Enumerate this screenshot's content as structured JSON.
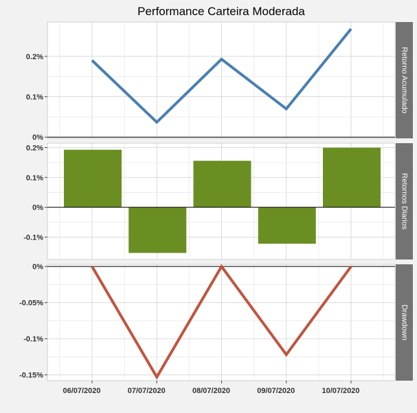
{
  "chart_data": {
    "type": "line",
    "title": "Performance Carteira Moderada",
    "xlabel": "",
    "ylabel": "",
    "x": [
      "06/07/2020",
      "07/07/2020",
      "08/07/2020",
      "09/07/2020",
      "10/07/2020"
    ],
    "x_tick_labels": [
      "06/07/2020",
      "07/07/2020",
      "08/07/2020",
      "09/07/2020",
      "10/07/2020"
    ],
    "grid": true,
    "panels": [
      {
        "name": "Retorno Acumulado",
        "type": "line",
        "color": "#4a7fb0",
        "values": [
          0.19,
          0.037,
          0.193,
          0.07,
          0.268
        ],
        "ylim": [
          -0.003,
          0.285
        ],
        "y_ticks": [
          {
            "value": 0.2,
            "label": "0.2%"
          },
          {
            "value": 0.1,
            "label": "0.1%"
          },
          {
            "value": 0.0,
            "label": "0%"
          }
        ],
        "zero_line": true
      },
      {
        "name": "Retornos Diarios",
        "type": "bar",
        "color": "#6b8e23",
        "values": [
          0.193,
          -0.153,
          0.156,
          -0.122,
          0.2
        ],
        "ylim": [
          -0.175,
          0.215
        ],
        "y_ticks": [
          {
            "value": 0.2,
            "label": "0.2%"
          },
          {
            "value": 0.1,
            "label": "0.1%"
          },
          {
            "value": 0.0,
            "label": "0%"
          },
          {
            "value": -0.1,
            "label": "-0.1%"
          }
        ],
        "zero_line": true
      },
      {
        "name": "Drawdown",
        "type": "line",
        "color": "#c0553f",
        "values": [
          0.0,
          -0.153,
          0.0,
          -0.122,
          0.0
        ],
        "ylim": [
          -0.158,
          0.003
        ],
        "y_ticks": [
          {
            "value": 0.0,
            "label": "0%"
          },
          {
            "value": -0.05,
            "label": "-0.05%"
          },
          {
            "value": -0.1,
            "label": "-0.1%"
          },
          {
            "value": -0.15,
            "label": "-0.15%"
          }
        ],
        "zero_line": true
      }
    ]
  }
}
